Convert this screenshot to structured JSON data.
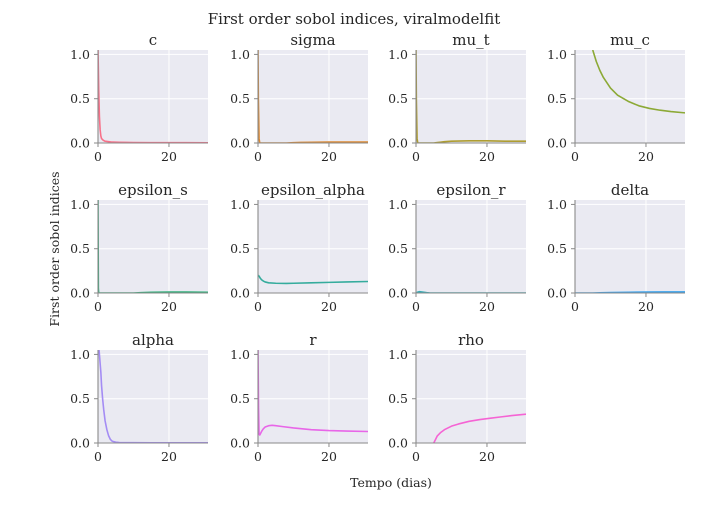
{
  "chart_data": {
    "type": "line",
    "title": "First order sobol indices, viralmodelfit",
    "xlabel": "Tempo (dias)",
    "ylabel": "First order sobol indices",
    "layout": "3 rows x 4 columns small multiples, last slot empty",
    "xlim": [
      0,
      31
    ],
    "ylim": [
      0,
      1.05
    ],
    "xticks": [
      0,
      20
    ],
    "yticks": [
      "0.0",
      "0.5",
      "1.0"
    ],
    "grid": true,
    "background": "#eaeaf2",
    "panels": [
      {
        "name": "c",
        "color": "#f77189",
        "x": [
          0,
          0.2,
          0.4,
          0.6,
          0.8,
          1,
          1.5,
          2,
          3,
          4,
          6,
          10,
          15,
          20,
          25,
          31
        ],
        "values": [
          1.05,
          0.6,
          0.3,
          0.15,
          0.08,
          0.05,
          0.03,
          0.02,
          0.015,
          0.01,
          0.008,
          0.005,
          0.004,
          0.003,
          0.003,
          0.002
        ]
      },
      {
        "name": "sigma",
        "color": "#dc8932",
        "x": [
          0,
          0.1,
          0.3,
          0.5,
          1,
          2,
          5,
          8,
          10,
          12,
          15,
          20,
          25,
          31
        ],
        "values": [
          1.05,
          0.5,
          0.05,
          0.0,
          0.0,
          0.0,
          0.0,
          0.0,
          0.003,
          0.006,
          0.008,
          0.01,
          0.01,
          0.01
        ]
      },
      {
        "name": "mu_t",
        "color": "#ae9d31",
        "x": [
          0,
          0.1,
          0.3,
          0.5,
          1,
          3,
          5,
          6,
          7,
          8,
          10,
          15,
          20,
          25,
          31
        ],
        "values": [
          1.05,
          0.5,
          0.05,
          0.0,
          0.0,
          0.0,
          0.0,
          0.005,
          0.01,
          0.015,
          0.02,
          0.025,
          0.025,
          0.02,
          0.02
        ]
      },
      {
        "name": "mu_c",
        "color": "#8ca936",
        "x": [
          5,
          6,
          7,
          8,
          10,
          12,
          15,
          18,
          21,
          24,
          27,
          31
        ],
        "values": [
          1.05,
          0.92,
          0.82,
          0.74,
          0.62,
          0.54,
          0.47,
          0.42,
          0.39,
          0.37,
          0.355,
          0.34
        ]
      },
      {
        "name": "epsilon_s",
        "color": "#33b07a",
        "x": [
          0,
          0.05,
          0.1,
          0.2,
          1,
          5,
          10,
          12,
          15,
          20,
          25,
          31
        ],
        "values": [
          1.05,
          0.5,
          0.05,
          0.0,
          0.0,
          0.0,
          0.0,
          0.003,
          0.008,
          0.01,
          0.01,
          0.008
        ]
      },
      {
        "name": "epsilon_alpha",
        "color": "#35ac9d",
        "x": [
          0,
          0.3,
          0.6,
          1,
          1.5,
          2,
          3,
          5,
          8,
          10,
          15,
          20,
          25,
          31
        ],
        "values": [
          0.2,
          0.19,
          0.17,
          0.15,
          0.135,
          0.125,
          0.115,
          0.11,
          0.108,
          0.11,
          0.115,
          0.12,
          0.125,
          0.13
        ]
      },
      {
        "name": "epsilon_r",
        "color": "#37abb4",
        "x": [
          0,
          0.5,
          1,
          2,
          3,
          4,
          5,
          8,
          15,
          31
        ],
        "values": [
          0.0,
          0.01,
          0.015,
          0.01,
          0.004,
          0.0,
          0.0,
          0.0,
          0.0,
          0.0
        ]
      },
      {
        "name": "delta",
        "color": "#3ba3ec",
        "x": [
          0,
          5,
          7,
          10,
          15,
          20,
          25,
          31
        ],
        "values": [
          0.0,
          0.0,
          0.002,
          0.005,
          0.008,
          0.01,
          0.012,
          0.012
        ]
      },
      {
        "name": "alpha",
        "color": "#a48cf4",
        "x": [
          0.3,
          0.5,
          0.8,
          1,
          1.3,
          1.6,
          2,
          2.5,
          3,
          3.5,
          4,
          5,
          6,
          10,
          15,
          20,
          31
        ],
        "values": [
          1.05,
          0.95,
          0.8,
          0.65,
          0.5,
          0.38,
          0.25,
          0.15,
          0.08,
          0.04,
          0.02,
          0.01,
          0.005,
          0.003,
          0.002,
          0.002,
          0.002
        ]
      },
      {
        "name": "r",
        "color": "#e866e8",
        "x": [
          0,
          0.15,
          0.3,
          0.5,
          1,
          1.5,
          2,
          3,
          4,
          5,
          7,
          10,
          15,
          20,
          25,
          31
        ],
        "values": [
          1.05,
          0.4,
          0.1,
          0.09,
          0.13,
          0.16,
          0.18,
          0.195,
          0.2,
          0.195,
          0.185,
          0.17,
          0.15,
          0.14,
          0.135,
          0.13
        ]
      },
      {
        "name": "rho",
        "color": "#f564d4",
        "x": [
          4.8,
          5,
          5.5,
          6,
          7,
          8,
          10,
          12,
          15,
          18,
          21,
          24,
          27,
          31
        ],
        "values": [
          -0.02,
          0.0,
          0.04,
          0.08,
          0.12,
          0.15,
          0.19,
          0.215,
          0.245,
          0.265,
          0.28,
          0.295,
          0.31,
          0.325
        ]
      }
    ]
  }
}
